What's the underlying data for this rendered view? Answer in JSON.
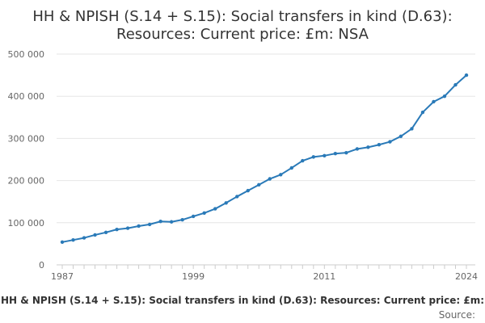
{
  "chart_data": {
    "type": "line",
    "title_line1": "HH & NPISH (S.14 + S.15): Social transfers in kind (D.63):",
    "title_line2": "Resources: Current price: £m: NSA",
    "xlabel": "",
    "ylabel": "",
    "x": [
      1987,
      1988,
      1989,
      1990,
      1991,
      1992,
      1993,
      1994,
      1995,
      1996,
      1997,
      1998,
      1999,
      2000,
      2001,
      2002,
      2003,
      2004,
      2005,
      2006,
      2007,
      2008,
      2009,
      2010,
      2011,
      2012,
      2013,
      2014,
      2015,
      2016,
      2017,
      2018,
      2019,
      2020,
      2021,
      2022,
      2023,
      2024
    ],
    "series": [
      {
        "values": [
          54000,
          59000,
          64000,
          71000,
          77000,
          84000,
          87000,
          92000,
          96000,
          103000,
          102000,
          107000,
          115000,
          123000,
          133000,
          147000,
          162000,
          176000,
          190000,
          204000,
          214000,
          230000,
          247000,
          256000,
          259000,
          264000,
          266000,
          275000,
          279000,
          285000,
          292000,
          305000,
          323000,
          362000,
          387000,
          400000,
          427000,
          450000
        ],
        "color": "#2a7ab8"
      }
    ],
    "x_ticks": [
      1987,
      1999,
      2011,
      2024
    ],
    "y_ticks": [
      0,
      100000,
      200000,
      300000,
      400000,
      500000
    ],
    "y_tick_labels": [
      "0",
      "100 000",
      "200 000",
      "300 000",
      "400 000",
      "500 000"
    ],
    "xlim": [
      1987,
      2024
    ],
    "ylim": [
      0,
      500000
    ],
    "grid": true,
    "legend": "none"
  },
  "caption": "HH & NPISH (S.14 + S.15): Social transfers in kind (D.63): Resources: Current price: £m:",
  "source_label": "Source:",
  "colors": {
    "line": "#2a7ab8",
    "grid": "#e6e6e6",
    "axis": "#cccccc"
  }
}
